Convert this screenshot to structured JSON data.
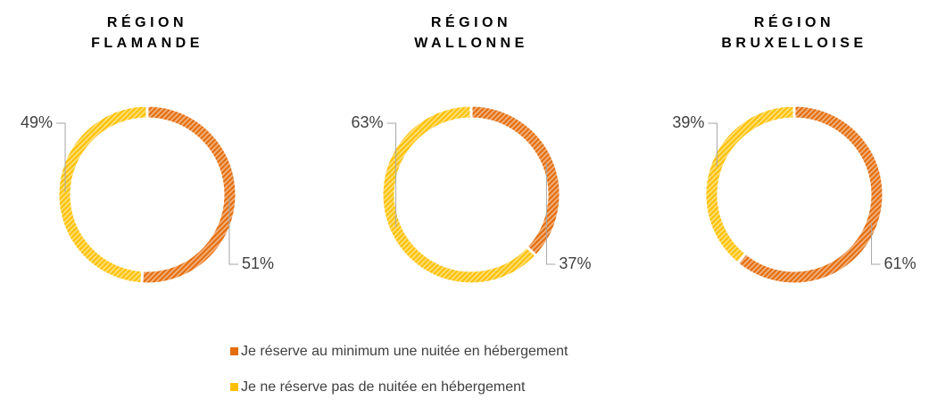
{
  "chart_data": [
    {
      "type": "pie",
      "title": "RÉGION FLAMANDE",
      "categories": [
        "Je réserve au minimum une nuitée en hébergement",
        "Je ne réserve pas de nuitée en hébergement"
      ],
      "values": [
        51,
        49
      ],
      "value_labels": [
        "51%",
        "49%"
      ],
      "colors": [
        "#E46C0A",
        "#FFC000"
      ]
    },
    {
      "type": "pie",
      "title": "RÉGION WALLONNE",
      "categories": [
        "Je réserve au minimum une nuitée en hébergement",
        "Je ne réserve pas de nuitée en hébergement"
      ],
      "values": [
        37,
        63
      ],
      "value_labels": [
        "37%",
        "63%"
      ],
      "colors": [
        "#E46C0A",
        "#FFC000"
      ]
    },
    {
      "type": "pie",
      "title": "RÉGION BRUXELLOISE",
      "categories": [
        "Je réserve au minimum une nuitée en hébergement",
        "Je ne réserve pas de nuitée en hébergement"
      ],
      "values": [
        61,
        39
      ],
      "value_labels": [
        "61%",
        "39%"
      ],
      "colors": [
        "#E46C0A",
        "#FFC000"
      ]
    }
  ]
}
